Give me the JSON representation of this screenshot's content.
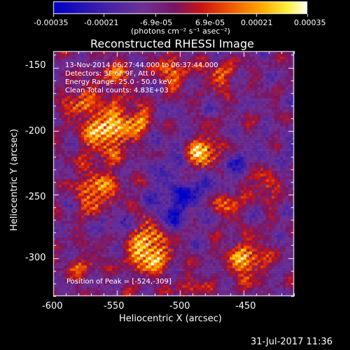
{
  "colorbar": {
    "ticks": [
      "-0.00035",
      "-0.00021",
      "-6.9e-05",
      "6.9e-05",
      "0.00021",
      "0.00035"
    ],
    "unit_label": "(photons cm⁻² s⁻¹ asec⁻²)"
  },
  "title": "Reconstructed RHESSI Image",
  "annotations": {
    "time_range": "13-Nov-2014 06:27:44.000 to 06:37:44.000",
    "detectors": "Detectors: 3F 6F 9F, Att 0",
    "energy_range": "Energy Range: 25.0 - 50.0 keV",
    "clean_counts": "Clean    Total counts: 4.83E+03",
    "peak_position": "Position of Peak = [-524,-309]"
  },
  "axes": {
    "xlabel": "Heliocentric X (arcsec)",
    "ylabel": "Heliocentric Y (arcsec)",
    "x_ticks": [
      "-600",
      "-550",
      "-500",
      "-450"
    ],
    "y_ticks": [
      "-150",
      "-200",
      "-250",
      "-300"
    ],
    "x_range": [
      -600,
      -410
    ],
    "y_range": [
      -330,
      -137
    ]
  },
  "footer_date": "31-Jul-2017 11:36"
}
